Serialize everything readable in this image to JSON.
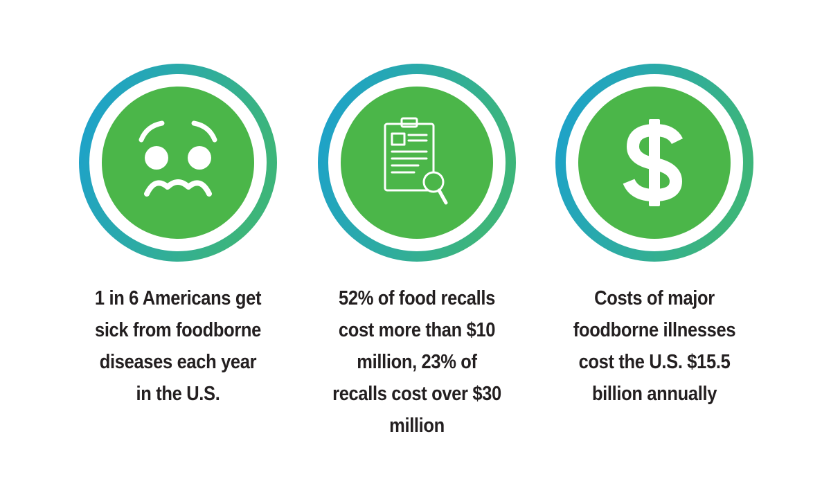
{
  "colors": {
    "inner_green": "#4bb649",
    "ring_gradient_start": "#1aa0d2",
    "ring_gradient_end": "#3db57a",
    "text": "#231f20"
  },
  "stats": [
    {
      "icon": "sick-face-icon",
      "text": "1 in 6 Americans get\nsick from foodborne\ndiseases each year\nin the U.S."
    },
    {
      "icon": "clipboard-magnifier-icon",
      "text": "52% of food recalls\ncost more than $10\nmillion, 23% of\nrecalls cost over $30\nmillion"
    },
    {
      "icon": "dollar-sign-icon",
      "text": "Costs of major\nfoodborne illnesses\ncost the U.S. $15.5\nbillion annually"
    }
  ]
}
